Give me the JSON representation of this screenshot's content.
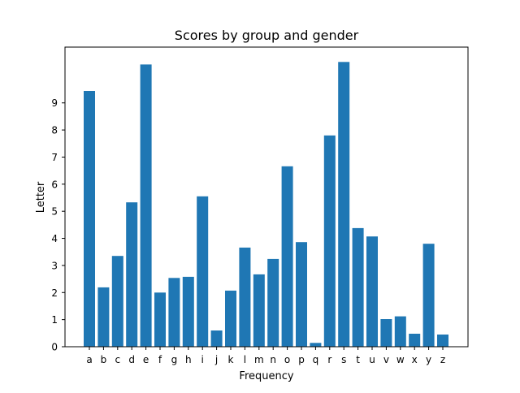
{
  "chart_data": {
    "type": "bar",
    "title": "Scores by group and gender",
    "xlabel": "Frequency",
    "ylabel": "Letter",
    "categories": [
      "a",
      "b",
      "c",
      "d",
      "e",
      "f",
      "g",
      "h",
      "i",
      "j",
      "k",
      "l",
      "m",
      "n",
      "o",
      "p",
      "q",
      "r",
      "s",
      "t",
      "u",
      "v",
      "w",
      "x",
      "y",
      "z"
    ],
    "values": [
      9.44,
      2.19,
      3.35,
      5.33,
      10.42,
      2.0,
      2.54,
      2.58,
      5.55,
      0.6,
      2.07,
      3.66,
      2.67,
      3.24,
      6.66,
      3.86,
      0.14,
      7.8,
      10.51,
      4.38,
      4.07,
      1.02,
      1.12,
      0.48,
      3.8,
      0.45
    ],
    "yticks": [
      0,
      1,
      2,
      3,
      4,
      5,
      6,
      7,
      8,
      9
    ],
    "ylim": [
      0,
      11.06
    ],
    "bar_color": "#1f77b4",
    "grid": false
  }
}
